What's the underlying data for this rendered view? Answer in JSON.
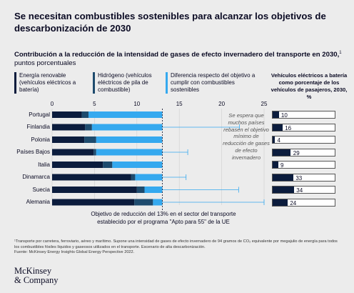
{
  "title": "Se necesitan combustibles sostenibles para alcanzar los objetivos de descarbonización de 2030",
  "subtitle_bold": "Contribución a la reducción de la intensidad de gases de efecto invernadero del transporte en 2030,",
  "subtitle_sup": "1",
  "subtitle_rest": "puntos porcentuales",
  "legend": [
    {
      "label": "Energía renovable (vehículos eléctricos a batería)",
      "color": "#0b1c3d"
    },
    {
      "label": "Hidrógeno (vehículos eléctricos de pila de combustible)",
      "color": "#1e4b6e"
    },
    {
      "label": "Diferencia respecto del objetivo a cumplir con combustibles sostenibles",
      "color": "#35a9ef"
    }
  ],
  "side_title": "Vehículos eléctricos a batería como porcentaje de los vehículos de pasajeros, 2030, %",
  "annotation": "Se espera que muchos países rebasen el objetivo mínimo de reducción de gases de efecto invernadero",
  "target_note": "Objetivo de reducción del 13% en el sector del transporte establecido por el programa \"Apto para 55\" de la UE",
  "footnote": "¹Transporte por carretera, ferroviario, aéreo y marítimo. Supone una intensidad de gases de efecto invernadero de 94 gramos de CO₂ equivalente por megajulio de energía para todos los combustibles fósiles líquidos y gaseosos utilizados en el transporte. Escenario de alta descarbonización.",
  "source": "Fuente: McKinsey Energy Insights Global Energy Perspective 2022.",
  "brand_line1": "McKinsey",
  "brand_line2": "& Company",
  "chart_data": {
    "type": "bar",
    "orientation": "horizontal",
    "stacked": true,
    "categories": [
      "Portugal",
      "Finlandia",
      "Polonia",
      "Países Bajos",
      "Italia",
      "Dinamarca",
      "Suecia",
      "Alemania"
    ],
    "series": [
      {
        "name": "Energía renovable (vehículos eléctricos a batería)",
        "values": [
          3.5,
          3.9,
          3.8,
          4.9,
          6.0,
          9.3,
          10.0,
          9.7
        ]
      },
      {
        "name": "Hidrógeno (vehículos eléctricos de pila de combustible)",
        "values": [
          0.8,
          0.8,
          1.4,
          0.3,
          1.1,
          0.5,
          0.9,
          2.2
        ]
      },
      {
        "name": "Diferencia respecto del objetivo a cumplir con combustibles sostenibles",
        "values": [
          8.7,
          8.3,
          7.8,
          7.8,
          5.9,
          3.2,
          2.1,
          1.1
        ]
      }
    ],
    "overshoot_to": [
      null,
      22.1,
      null,
      16.0,
      null,
      15.8,
      22.0,
      25.0
    ],
    "target": 13,
    "xticks": [
      0,
      5,
      10,
      15,
      20,
      25
    ],
    "xlim": [
      0,
      25
    ],
    "ev_share": {
      "values": [
        10,
        16,
        4,
        29,
        9,
        33,
        34,
        24
      ],
      "max": 100
    }
  }
}
